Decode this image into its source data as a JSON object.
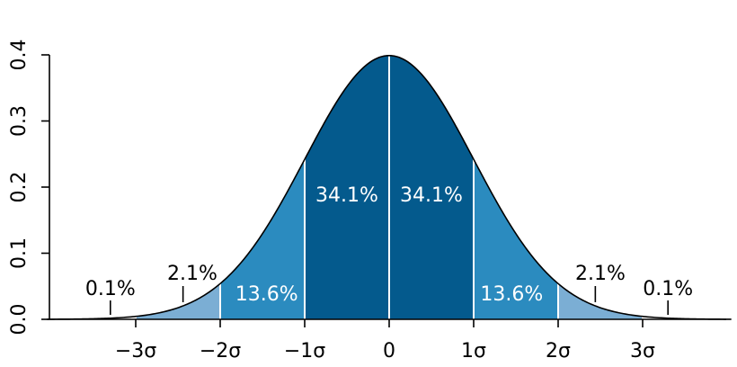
{
  "chart_data": {
    "type": "area",
    "title": "",
    "xlabel": "",
    "ylabel": "",
    "xlim": [
      -4,
      4
    ],
    "ylim": [
      0,
      0.4
    ],
    "x_ticks": [
      {
        "value": -3,
        "label": "−3σ"
      },
      {
        "value": -2,
        "label": "−2σ"
      },
      {
        "value": -1,
        "label": "−1σ"
      },
      {
        "value": 0,
        "label": "0"
      },
      {
        "value": 1,
        "label": "1σ"
      },
      {
        "value": 2,
        "label": "2σ"
      },
      {
        "value": 3,
        "label": "3σ"
      }
    ],
    "y_ticks": [
      {
        "value": 0.0,
        "label": "0.0"
      },
      {
        "value": 0.1,
        "label": "0.1"
      },
      {
        "value": 0.2,
        "label": "0.2"
      },
      {
        "value": 0.3,
        "label": "0.3"
      },
      {
        "value": 0.4,
        "label": "0.4"
      }
    ],
    "curve": "standard normal density",
    "regions": [
      {
        "from": -4,
        "to": -3,
        "percent": "0.1%",
        "color": "#ffffff"
      },
      {
        "from": -3,
        "to": -2,
        "percent": "2.1%",
        "color": "#7baed4"
      },
      {
        "from": -2,
        "to": -1,
        "percent": "13.6%",
        "color": "#2b8bbf"
      },
      {
        "from": -1,
        "to": 0,
        "percent": "34.1%",
        "color": "#045a8d"
      },
      {
        "from": 0,
        "to": 1,
        "percent": "34.1%",
        "color": "#045a8d"
      },
      {
        "from": 1,
        "to": 2,
        "percent": "13.6%",
        "color": "#2b8bbf"
      },
      {
        "from": 2,
        "to": 3,
        "percent": "2.1%",
        "color": "#7baed4"
      },
      {
        "from": 3,
        "to": 4,
        "percent": "0.1%",
        "color": "#ffffff"
      }
    ],
    "grid": false,
    "legend": "none"
  }
}
